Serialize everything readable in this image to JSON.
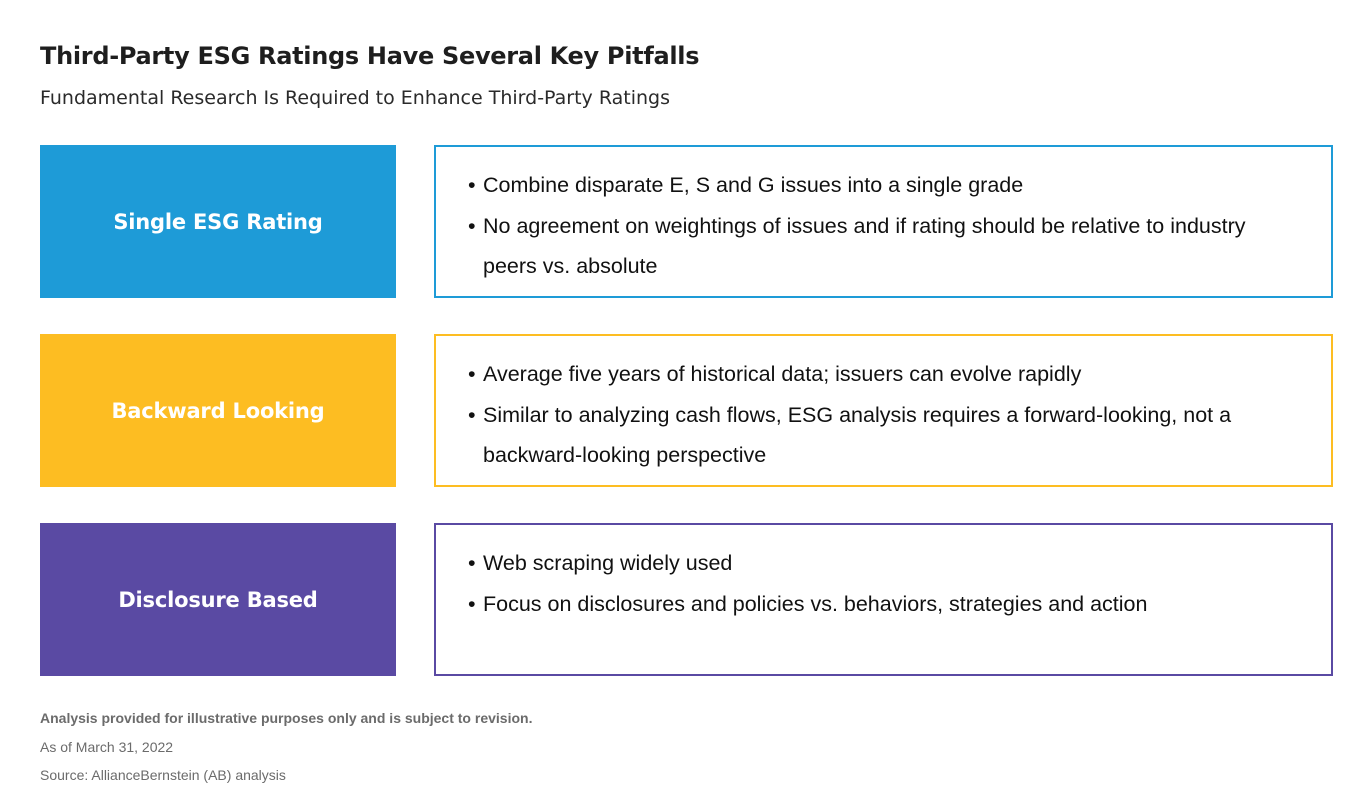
{
  "title": "Third-Party ESG Ratings Have Several Key Pitfalls",
  "subtitle": "Fundamental Research Is Required to Enhance Third-Party Ratings",
  "rows": [
    {
      "label": "Single ESG Rating",
      "color": "#1e9bd7",
      "bullets": [
        "Combine disparate E, S and G issues into a single grade",
        "No agreement on weightings of issues and if rating should be relative to industry peers vs. absolute"
      ]
    },
    {
      "label": "Backward Looking",
      "color": "#fdbd22",
      "bullets": [
        "Average five years of historical data; issuers can evolve rapidly",
        "Similar to analyzing cash flows, ESG analysis requires a forward-looking, not a backward-looking perspective"
      ]
    },
    {
      "label": "Disclosure Based",
      "color": "#5a4aa3",
      "bullets": [
        "Web scraping widely used",
        "Focus on disclosures and policies vs. behaviors, strategies and action"
      ]
    }
  ],
  "footer": {
    "note": "Analysis provided for illustrative purposes only and is subject to revision.",
    "date": "As of March 31, 2022",
    "source": "Source: AllianceBernstein (AB) analysis"
  }
}
